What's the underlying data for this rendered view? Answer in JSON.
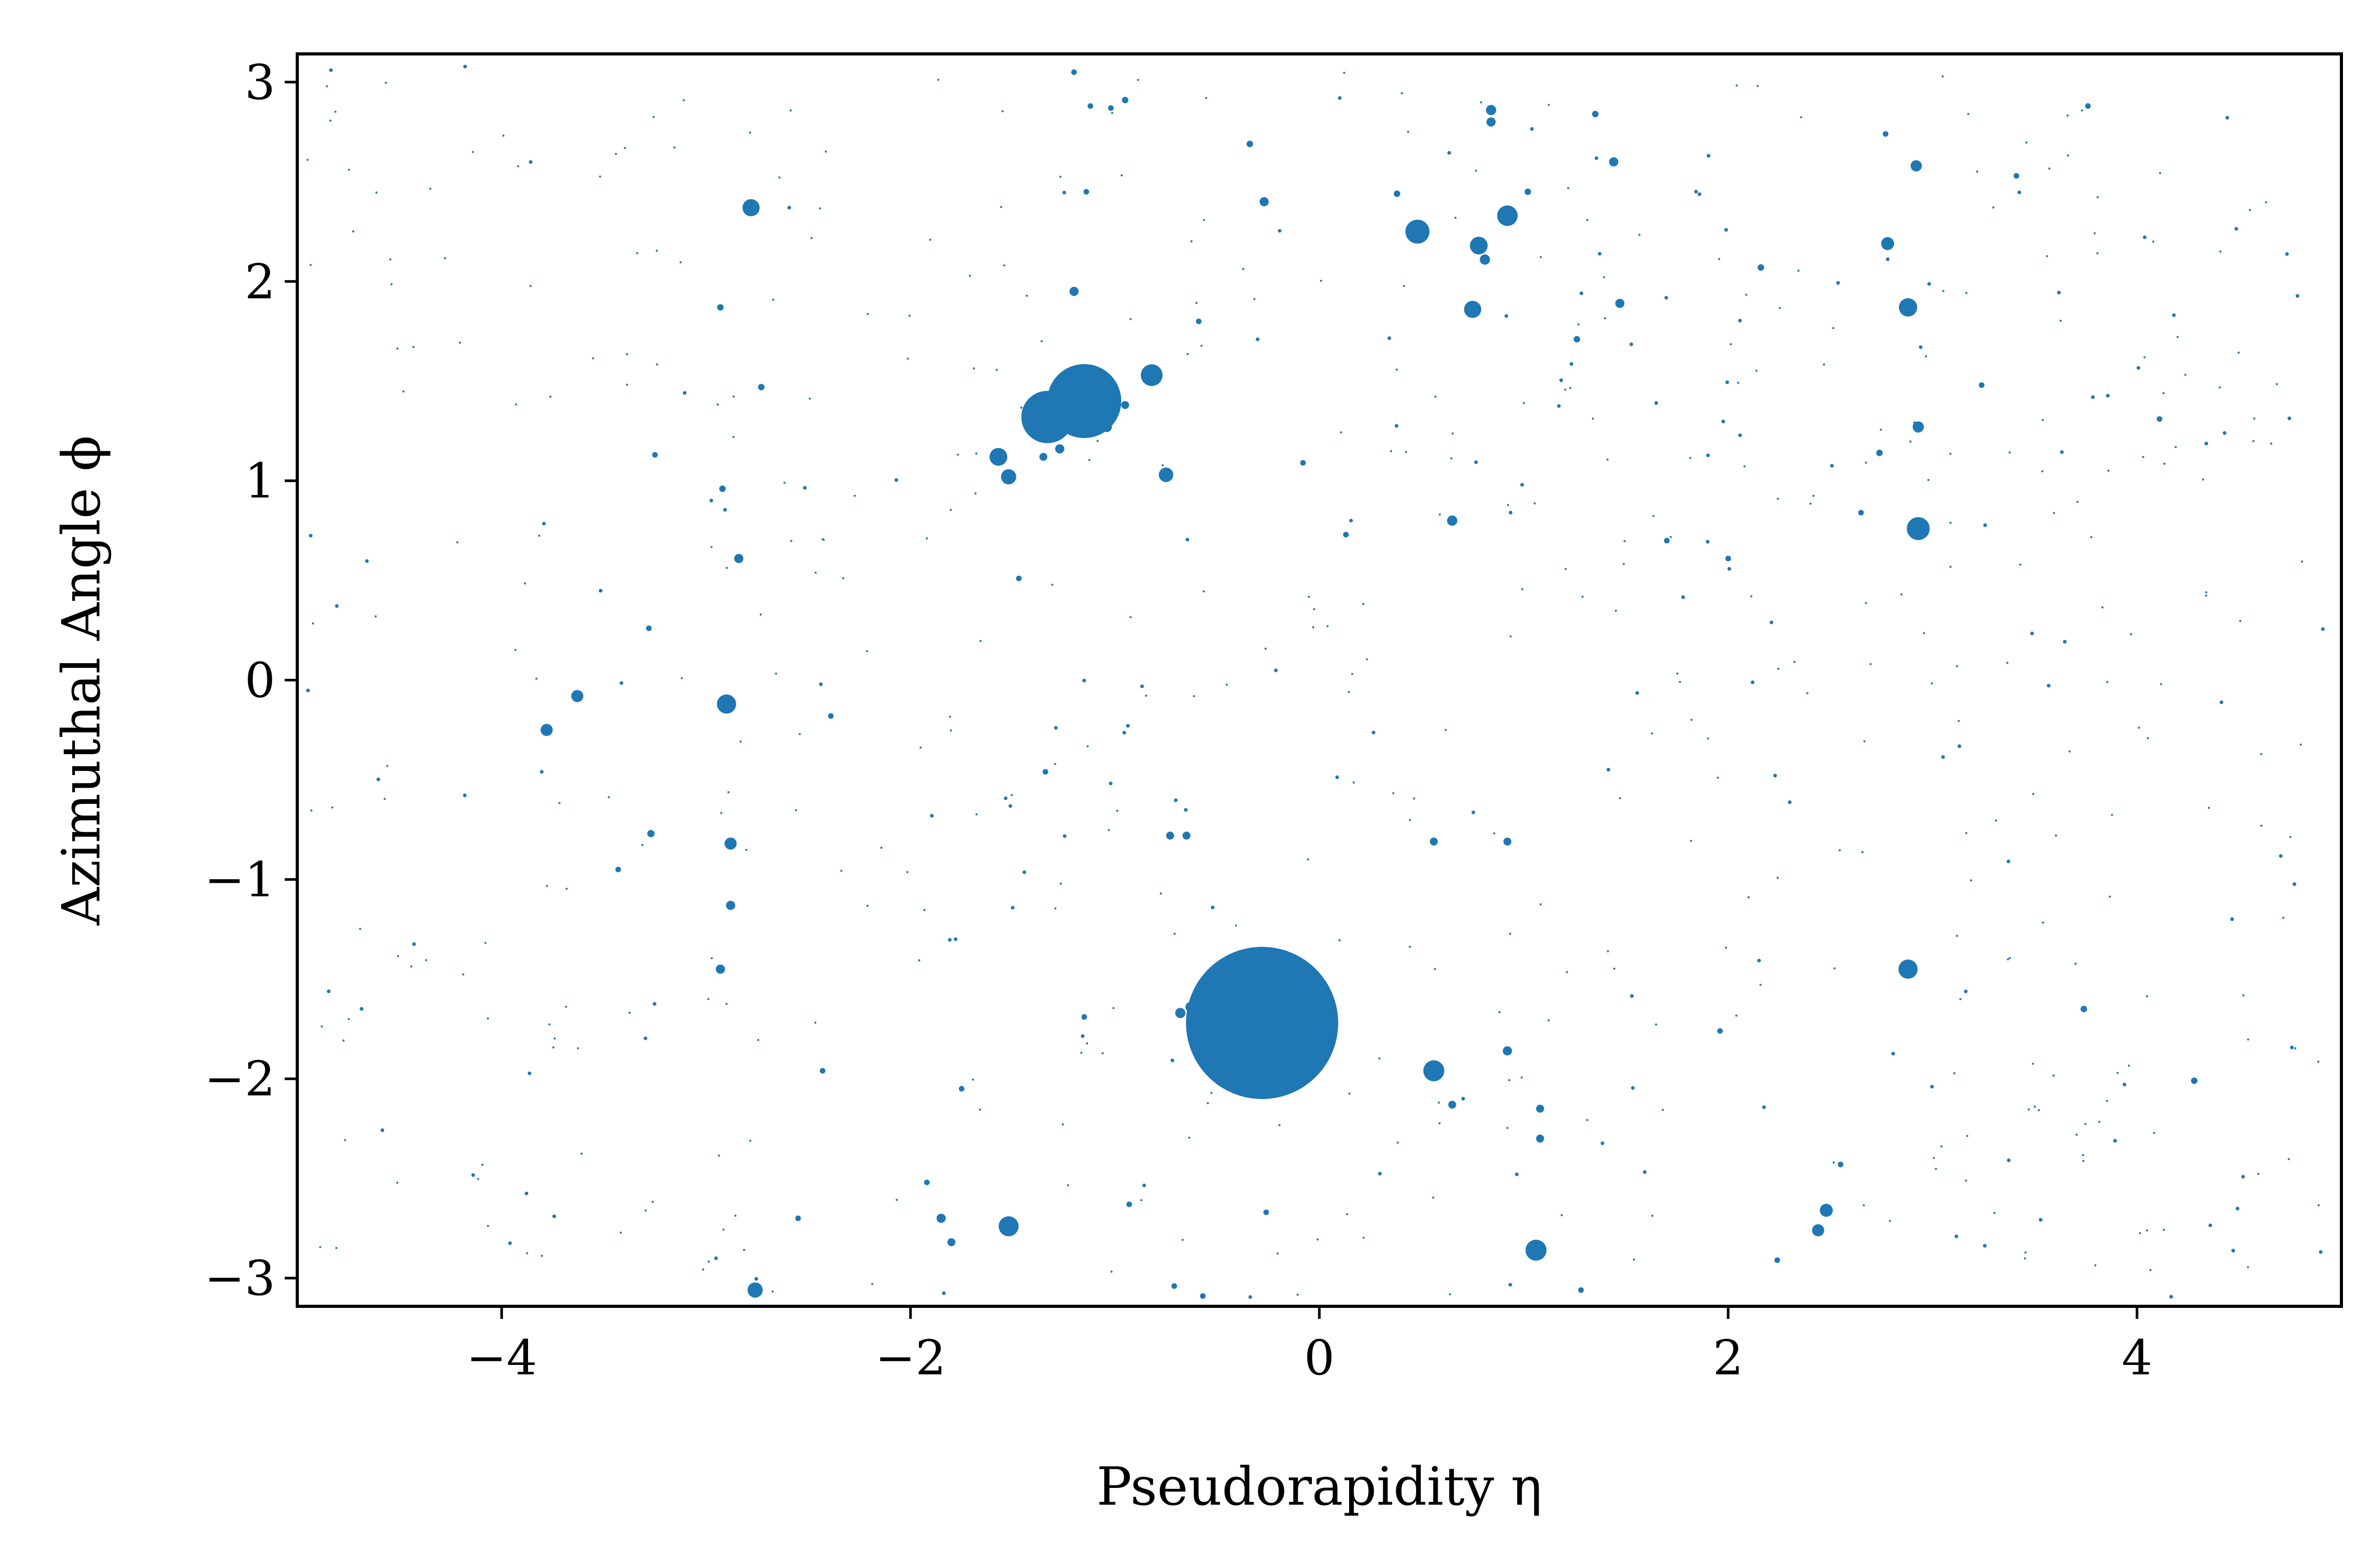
{
  "chart_data": {
    "type": "scatter",
    "title": "",
    "xlabel": "Pseudorapidity η",
    "ylabel": "Azimuthal Angle ϕ",
    "xlim": [
      -5,
      5
    ],
    "ylim": [
      -3.1416,
      3.1416
    ],
    "x_ticks": [
      -4,
      -2,
      0,
      2,
      4
    ],
    "x_tick_labels": [
      "−4",
      "−2",
      "0",
      "2",
      "4"
    ],
    "y_ticks": [
      -3,
      -2,
      -1,
      0,
      1,
      2,
      3
    ],
    "y_tick_labels": [
      "−3",
      "−2",
      "−1",
      "0",
      "1",
      "2",
      "3"
    ],
    "marker_color": "#1f77b4",
    "grid": false,
    "legend": "none",
    "note_sizes": "marker area proportional to particle energy (s values, relative)",
    "points": [
      {
        "x": -0.28,
        "y": -1.72,
        "s": 2200
      },
      {
        "x": -1.15,
        "y": 1.4,
        "s": 520
      },
      {
        "x": -1.33,
        "y": 1.32,
        "s": 260
      },
      {
        "x": -1.22,
        "y": 1.38,
        "s": 160
      },
      {
        "x": -0.82,
        "y": 1.53,
        "s": 45
      },
      {
        "x": 0.48,
        "y": 2.25,
        "s": 55
      },
      {
        "x": 0.92,
        "y": 2.33,
        "s": 40
      },
      {
        "x": 0.78,
        "y": 2.18,
        "s": 30
      },
      {
        "x": 0.75,
        "y": 1.86,
        "s": 28
      },
      {
        "x": 2.88,
        "y": 1.87,
        "s": 32
      },
      {
        "x": 2.93,
        "y": 0.76,
        "s": 50
      },
      {
        "x": 2.88,
        "y": -1.45,
        "s": 35
      },
      {
        "x": 0.56,
        "y": -1.96,
        "s": 42
      },
      {
        "x": 1.06,
        "y": -2.86,
        "s": 42
      },
      {
        "x": -1.52,
        "y": -2.74,
        "s": 38
      },
      {
        "x": -2.9,
        "y": -0.12,
        "s": 35
      },
      {
        "x": -2.78,
        "y": 2.37,
        "s": 28
      },
      {
        "x": -2.76,
        "y": -3.06,
        "s": 22
      },
      {
        "x": -1.57,
        "y": 1.12,
        "s": 30
      },
      {
        "x": -1.52,
        "y": 1.02,
        "s": 22
      },
      {
        "x": -0.75,
        "y": 1.03,
        "s": 20
      },
      {
        "x": -3.63,
        "y": -0.08,
        "s": 14
      },
      {
        "x": -3.78,
        "y": -0.25,
        "s": 14
      },
      {
        "x": -2.88,
        "y": -0.82,
        "s": 14
      },
      {
        "x": 2.78,
        "y": 2.19,
        "s": 16
      },
      {
        "x": 2.92,
        "y": 2.58,
        "s": 12
      },
      {
        "x": 2.93,
        "y": 1.27,
        "s": 12
      },
      {
        "x": 2.48,
        "y": -2.66,
        "s": 16
      },
      {
        "x": 2.44,
        "y": -2.76,
        "s": 14
      },
      {
        "x": -0.63,
        "y": -1.64,
        "s": 10
      },
      {
        "x": -0.68,
        "y": -1.67,
        "s": 10
      },
      {
        "x": -0.04,
        "y": -1.68,
        "s": 14
      },
      {
        "x": 0.65,
        "y": 0.8,
        "s": 10
      },
      {
        "x": 0.84,
        "y": 2.86,
        "s": 10
      },
      {
        "x": 0.84,
        "y": 2.8,
        "s": 8
      },
      {
        "x": 0.81,
        "y": 2.11,
        "s": 10
      },
      {
        "x": 1.44,
        "y": 2.6,
        "s": 8
      },
      {
        "x": 1.47,
        "y": 1.89,
        "s": 8
      },
      {
        "x": -1.2,
        "y": 1.95,
        "s": 8
      },
      {
        "x": -0.27,
        "y": 2.4,
        "s": 8
      },
      {
        "x": -2.84,
        "y": 0.61,
        "s": 8
      },
      {
        "x": -2.93,
        "y": -1.45,
        "s": 8
      },
      {
        "x": -2.88,
        "y": -1.13,
        "s": 8
      },
      {
        "x": 0.92,
        "y": -1.86,
        "s": 8
      },
      {
        "x": 1.08,
        "y": -2.15,
        "s": 6
      },
      {
        "x": 1.08,
        "y": -2.3,
        "s": 6
      },
      {
        "x": 0.65,
        "y": -2.13,
        "s": 6
      },
      {
        "x": 0.56,
        "y": -0.81,
        "s": 6
      },
      {
        "x": 0.92,
        "y": -0.81,
        "s": 6
      },
      {
        "x": -0.73,
        "y": -0.78,
        "s": 6
      },
      {
        "x": -0.65,
        "y": -0.78,
        "s": 6
      },
      {
        "x": -1.85,
        "y": -2.7,
        "s": 8
      },
      {
        "x": -1.8,
        "y": -2.82,
        "s": 6
      },
      {
        "x": -1.14,
        "y": 1.25,
        "s": 10
      },
      {
        "x": -1.04,
        "y": 1.27,
        "s": 10
      },
      {
        "x": -1.27,
        "y": 1.16,
        "s": 8
      },
      {
        "x": -1.35,
        "y": 1.12,
        "s": 6
      },
      {
        "x": -0.95,
        "y": 1.38,
        "s": 6
      },
      {
        "x": -1.3,
        "y": 1.46,
        "s": 6
      },
      {
        "x": 3.74,
        "y": -1.65,
        "s": 4
      },
      {
        "x": 4.28,
        "y": -2.01,
        "s": 4
      },
      {
        "x": 2.16,
        "y": 2.07,
        "s": 4
      },
      {
        "x": 1.02,
        "y": 2.45,
        "s": 4
      },
      {
        "x": 1.35,
        "y": 2.84,
        "s": 4
      },
      {
        "x": 1.26,
        "y": 1.71,
        "s": 4
      },
      {
        "x": 0.38,
        "y": 2.44,
        "s": 4
      },
      {
        "x": -0.34,
        "y": 2.69,
        "s": 4
      },
      {
        "x": -0.95,
        "y": 2.91,
        "s": 4
      },
      {
        "x": -1.14,
        "y": 2.45,
        "s": 3
      },
      {
        "x": -1.02,
        "y": 2.87,
        "s": 3
      },
      {
        "x": -0.59,
        "y": 1.8,
        "s": 3
      },
      {
        "x": -2.73,
        "y": 1.47,
        "s": 4
      },
      {
        "x": -3.25,
        "y": 1.13,
        "s": 3
      },
      {
        "x": -2.93,
        "y": 1.87,
        "s": 4
      },
      {
        "x": -2.92,
        "y": 0.96,
        "s": 4
      },
      {
        "x": -3.27,
        "y": -0.77,
        "s": 5
      },
      {
        "x": -3.28,
        "y": 0.26,
        "s": 3
      },
      {
        "x": -3.43,
        "y": -0.95,
        "s": 3
      },
      {
        "x": -2.43,
        "y": -1.96,
        "s": 3
      },
      {
        "x": -2.39,
        "y": -0.18,
        "s": 3
      },
      {
        "x": -1.47,
        "y": 0.51,
        "s": 3
      },
      {
        "x": -1.34,
        "y": -0.46,
        "s": 3
      },
      {
        "x": -1.2,
        "y": 3.05,
        "s": 3
      },
      {
        "x": -1.12,
        "y": 2.88,
        "s": 3
      },
      {
        "x": -0.93,
        "y": -2.63,
        "s": 3
      },
      {
        "x": -0.57,
        "y": -3.09,
        "s": 3
      },
      {
        "x": -0.08,
        "y": 1.09,
        "s": 3
      },
      {
        "x": 0.13,
        "y": 0.73,
        "s": 3
      },
      {
        "x": 0.38,
        "y": 2.44,
        "s": 3
      },
      {
        "x": 0.66,
        "y": 0.8,
        "s": 3
      },
      {
        "x": 1.7,
        "y": 0.7,
        "s": 3
      },
      {
        "x": 1.96,
        "y": -1.76,
        "s": 3
      },
      {
        "x": 2.0,
        "y": 0.61,
        "s": 3
      },
      {
        "x": 2.77,
        "y": 2.74,
        "s": 3
      },
      {
        "x": 2.74,
        "y": 1.14,
        "s": 4
      },
      {
        "x": 2.65,
        "y": 0.84,
        "s": 3
      },
      {
        "x": 3.41,
        "y": 2.53,
        "s": 3
      },
      {
        "x": 3.76,
        "y": 2.88,
        "s": 3
      },
      {
        "x": 3.24,
        "y": 1.48,
        "s": 3
      },
      {
        "x": 4.11,
        "y": 1.31,
        "s": 3
      },
      {
        "x": 2.55,
        "y": -2.43,
        "s": 3
      },
      {
        "x": 2.24,
        "y": -2.91,
        "s": 3
      },
      {
        "x": 1.28,
        "y": -3.06,
        "s": 3
      },
      {
        "x": -0.26,
        "y": -2.67,
        "s": 3
      },
      {
        "x": -0.71,
        "y": -3.04,
        "s": 3
      },
      {
        "x": -1.15,
        "y": -1.69,
        "s": 3
      },
      {
        "x": -1.92,
        "y": -2.52,
        "s": 3
      },
      {
        "x": -1.75,
        "y": -2.05,
        "s": 3
      },
      {
        "x": -2.55,
        "y": -2.7,
        "s": 3
      }
    ]
  }
}
